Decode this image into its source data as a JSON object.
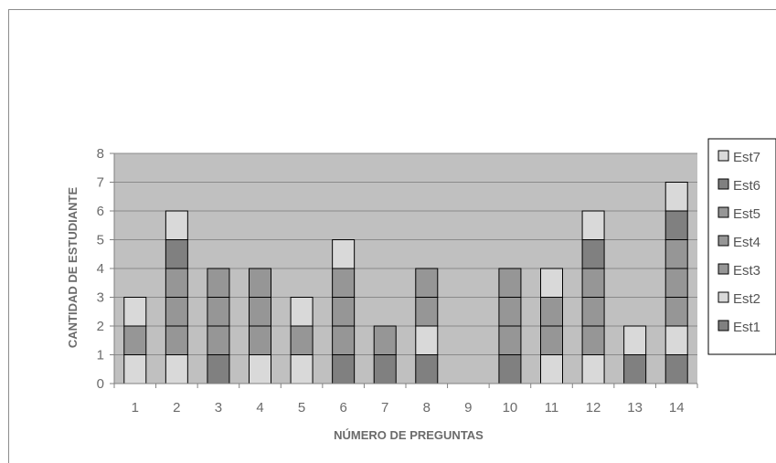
{
  "chart_data": {
    "type": "bar",
    "stacked": true,
    "title": "",
    "xlabel": "NÚMERO DE PREGUNTAS",
    "ylabel": "CANTIDAD DE ESTUDIANTE",
    "ylim": [
      0,
      8
    ],
    "yticks": [
      0,
      1,
      2,
      3,
      4,
      5,
      6,
      7,
      8
    ],
    "grid": true,
    "legend_position": "right",
    "plot_background": "#c0c0c0",
    "categories": [
      "1",
      "2",
      "3",
      "4",
      "5",
      "6",
      "7",
      "8",
      "9",
      "10",
      "11",
      "12",
      "13",
      "14"
    ],
    "series": [
      {
        "name": "Est1",
        "color": "#808080",
        "values": [
          0,
          0,
          1,
          0,
          0,
          1,
          1,
          1,
          0,
          1,
          0,
          0,
          1,
          1
        ]
      },
      {
        "name": "Est2",
        "color": "#d9d9d9",
        "values": [
          1,
          1,
          0,
          1,
          1,
          0,
          0,
          1,
          0,
          0,
          1,
          1,
          0,
          1
        ]
      },
      {
        "name": "Est3",
        "color": "#969696",
        "values": [
          1,
          1,
          1,
          1,
          1,
          1,
          1,
          1,
          0,
          1,
          1,
          1,
          0,
          1
        ]
      },
      {
        "name": "Est4",
        "color": "#969696",
        "values": [
          0,
          1,
          1,
          1,
          0,
          1,
          0,
          0,
          0,
          1,
          1,
          1,
          0,
          1
        ]
      },
      {
        "name": "Est5",
        "color": "#969696",
        "values": [
          0,
          1,
          1,
          1,
          0,
          1,
          0,
          1,
          0,
          1,
          0,
          1,
          0,
          1
        ]
      },
      {
        "name": "Est6",
        "color": "#808080",
        "values": [
          0,
          1,
          0,
          0,
          0,
          0,
          0,
          0,
          0,
          0,
          0,
          1,
          0,
          1
        ]
      },
      {
        "name": "Est7",
        "color": "#d9d9d9",
        "values": [
          1,
          1,
          0,
          0,
          1,
          1,
          0,
          0,
          0,
          0,
          1,
          1,
          1,
          1
        ]
      }
    ],
    "legend_order": [
      "Est7",
      "Est6",
      "Est5",
      "Est4",
      "Est3",
      "Est2",
      "Est1"
    ]
  }
}
